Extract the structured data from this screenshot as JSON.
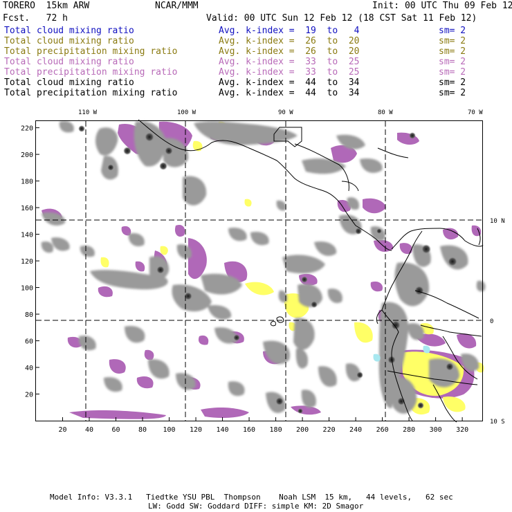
{
  "header": {
    "model": "TORERO  15km ARW",
    "org": "NCAR/MMM",
    "init": "Init: 00 UTC Thu 09 Feb 12",
    "fcst": "Fcst.   72 h",
    "valid": "Valid: 00 UTC Sun 12 Feb 12 (18 CST Sat 11 Feb 12)"
  },
  "legend": [
    {
      "field": "Total cloud mixing ratio",
      "kindex": "Avg. k-index =  19  to   4",
      "sm": "sm= 2",
      "color": "#1010c0"
    },
    {
      "field": "Total cloud mixing ratio",
      "kindex": "Avg. k-index =  26  to  20",
      "sm": "sm= 2",
      "color": "#8a7a10"
    },
    {
      "field": "Total precipitation mixing ratio",
      "kindex": "Avg. k-index =  26  to  20",
      "sm": "sm= 2",
      "color": "#8a7a10"
    },
    {
      "field": "Total cloud mixing ratio",
      "kindex": "Avg. k-index =  33  to  25",
      "sm": "sm= 2",
      "color": "#b86ab8"
    },
    {
      "field": "Total precipitation mixing ratio",
      "kindex": "Avg. k-index =  33  to  25",
      "sm": "sm= 2",
      "color": "#b86ab8"
    },
    {
      "field": "Total cloud mixing ratio",
      "kindex": "Avg. k-index =  44  to  34",
      "sm": "sm= 2",
      "color": "#000000"
    },
    {
      "field": "Total precipitation mixing ratio",
      "kindex": "Avg. k-index =  44  to  34",
      "sm": "sm= 2",
      "color": "#000000"
    }
  ],
  "axes": {
    "top_labels": [
      "110 W",
      "100 W",
      "90 W",
      "80 W",
      "70 W"
    ],
    "right_labels": [
      "10 N",
      "0",
      "10 S"
    ],
    "x_ticks": [
      "20",
      "40",
      "60",
      "80",
      "100",
      "120",
      "140",
      "160",
      "180",
      "200",
      "220",
      "240",
      "260",
      "280",
      "300",
      "320"
    ],
    "y_ticks": [
      "20",
      "40",
      "60",
      "80",
      "100",
      "120",
      "140",
      "160",
      "180",
      "200",
      "220"
    ],
    "x_range": [
      0,
      335
    ],
    "y_range": [
      0,
      225
    ]
  },
  "colors": {
    "purple": "#b068b8",
    "yellow": "#ffff66",
    "gray": "#9a9a9a",
    "cyan": "#a8e8f0"
  },
  "footer": {
    "line1": "Model Info: V3.3.1   Tiedtke YSU PBL  Thompson    Noah LSM  15 km,   44 levels,   62 sec",
    "line2": "LW: Godd SW: Goddard DIFF: simple KM: 2D Smagor"
  }
}
